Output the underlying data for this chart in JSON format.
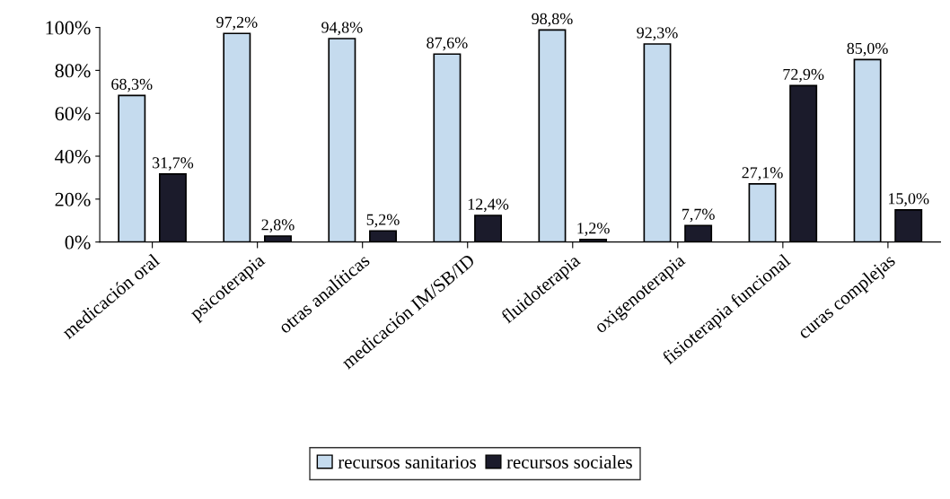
{
  "chart_data": {
    "type": "bar",
    "categories": [
      "medicación oral",
      "psicoterapia",
      "otras analíticas",
      "medicación IM/SB/ID",
      "fluidoterapia",
      "oxigenoterapia",
      "fisioterapia funcional",
      "curas complejas"
    ],
    "series": [
      {
        "name": "recursos sanitarios",
        "color": "#c5dbee",
        "values": [
          68.3,
          97.2,
          94.8,
          87.6,
          98.8,
          92.3,
          27.1,
          85.0
        ],
        "value_labels": [
          "68,3%",
          "97,2%",
          "94,8%",
          "87,6%",
          "98,8%",
          "92,3%",
          "27,1%",
          "85,0%"
        ]
      },
      {
        "name": "recursos sociales",
        "color": "#1b1b2b",
        "values": [
          31.7,
          2.8,
          5.2,
          12.4,
          1.2,
          7.7,
          72.9,
          15.0
        ],
        "value_labels": [
          "31,7%",
          "2,8%",
          "5,2%",
          "12,4%",
          "1,2%",
          "7,7%",
          "72,9%",
          "15,0%"
        ]
      }
    ],
    "ylim": [
      0,
      100
    ],
    "yticks": [
      {
        "value": 0,
        "label": "0%"
      },
      {
        "value": 20,
        "label": "20%"
      },
      {
        "value": 40,
        "label": "40%"
      },
      {
        "value": 60,
        "label": "60%"
      },
      {
        "value": 80,
        "label": "80%"
      },
      {
        "value": 100,
        "label": "100%"
      }
    ],
    "grid": false,
    "legend": "bottom"
  }
}
